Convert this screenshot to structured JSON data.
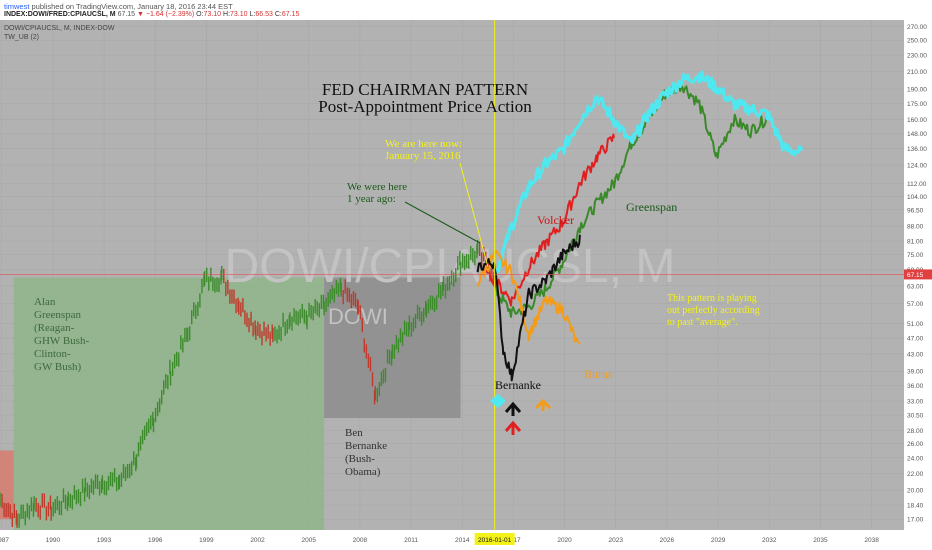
{
  "header": {
    "username": "timwest",
    "published": "published on TradingView.com, January 18, 2016 23:44 EST",
    "symbol": "INDEX:DOWI/FRED:CPIAUCSL, M",
    "last": "67.15",
    "change": "▼ −1.64 (−2.39%)",
    "o_label": "O:",
    "o": "73.10",
    "h_label": "H:",
    "h": "73.10",
    "l_label": "L:",
    "l": "66.53",
    "c_label": "C:",
    "c": "67.15"
  },
  "legend": {
    "series_line": "DOWI/CPIAUCSL, M, INDEX-DOW",
    "indicator_line": "TW_UB (2)"
  },
  "watermark": {
    "main": "DOWI/CPIAUCSL, M",
    "sub": "DOWI"
  },
  "price_axis": {
    "ticks": [
      "270.00",
      "250.00",
      "230.00",
      "210.00",
      "190.00",
      "175.00",
      "160.00",
      "148.00",
      "136.00",
      "124.00",
      "112.00",
      "104.00",
      "96.50",
      "88.00",
      "81.00",
      "75.00",
      "69.00",
      "63.00",
      "57.00",
      "51.00",
      "47.00",
      "43.00",
      "39.00",
      "36.00",
      "33.00",
      "30.50",
      "28.00",
      "26.00",
      "24.00",
      "22.00",
      "20.00",
      "18.40",
      "17.00"
    ],
    "current_price_label": "67.15"
  },
  "time_axis": {
    "ticks": [
      "1987",
      "1990",
      "1993",
      "1996",
      "1999",
      "2002",
      "2005",
      "2008",
      "2011",
      "2014",
      "2017",
      "2020",
      "2023",
      "2026",
      "2029",
      "2032",
      "2035",
      "2038"
    ],
    "highlight": "2016-01-01"
  },
  "annotations": {
    "title_line1": "FED CHAIRMAN PATTERN",
    "title_line2": "Post-Appointment Price Action",
    "here_now_line1": "We are here now:",
    "here_now_line2": "January 15, 2016",
    "year_ago_line1": "We were here",
    "year_ago_line2": "1 year ago:",
    "volcker": "Volcker",
    "greenspan": "Greenspan",
    "burns": "Burns",
    "bernanke": "Bernanke",
    "playing_line1": "This pattern is playing",
    "playing_line2": "out perfectly according",
    "playing_line3": "to past \"average\".",
    "greenspan_box": [
      "Alan",
      "Greenspan",
      "(Reagan-",
      "GHW Bush-",
      "Clinton-",
      "GW Bush)"
    ],
    "bernanke_box": [
      "Ben",
      "Bernanke",
      "(Bush-",
      "Obama)"
    ]
  },
  "colors": {
    "plot_bg": "#b2b2b2",
    "greenspan_zone": "#8fb48a",
    "bernanke_zone": "#8c8c8c",
    "up_bar": "#3c8c2c",
    "down_bar": "#c0392b",
    "cyan": "#4fe8f0",
    "red": "#e02020",
    "orange": "#f39c1a",
    "black": "#111111",
    "green": "#3a8a2a",
    "yellow": "#f2f21a"
  },
  "chart_data": {
    "type": "line",
    "title": "FED CHAIRMAN PATTERN",
    "subtitle": "Post-Appointment Price Action",
    "xlabel": "",
    "ylabel": "",
    "y_scale": "log",
    "ylim": [
      16,
      280
    ],
    "xlim": [
      1987,
      2040
    ],
    "grid": true,
    "series": [
      {
        "name": "",
        "style": "bars",
        "color": "up/down",
        "points": [
          [
            1987,
            19
          ],
          [
            1988,
            17
          ],
          [
            1989,
            18.5
          ],
          [
            1990,
            18
          ],
          [
            1991,
            19
          ],
          [
            1992,
            20
          ],
          [
            1993,
            21
          ],
          [
            1994,
            21
          ],
          [
            1995,
            24
          ],
          [
            1996,
            30
          ],
          [
            1997,
            39
          ],
          [
            1998,
            48
          ],
          [
            1999,
            65
          ],
          [
            2000,
            66
          ],
          [
            2001,
            57
          ],
          [
            2002,
            50
          ],
          [
            2003,
            47
          ],
          [
            2004,
            53
          ],
          [
            2005,
            53
          ],
          [
            2006,
            56
          ],
          [
            2007,
            62
          ],
          [
            2008,
            56
          ],
          [
            2009,
            34
          ],
          [
            2010,
            44
          ],
          [
            2011,
            50
          ],
          [
            2012,
            56
          ],
          [
            2013,
            62
          ],
          [
            2014,
            72
          ],
          [
            2015,
            76
          ],
          [
            2016,
            67.15
          ]
        ]
      },
      {
        "name": "Greenspan",
        "color": "green",
        "points": [
          [
            2016,
            62
          ],
          [
            2017,
            54
          ],
          [
            2018,
            56
          ],
          [
            2019,
            62
          ],
          [
            2020,
            72
          ],
          [
            2021,
            88
          ],
          [
            2022,
            100
          ],
          [
            2023,
            112
          ],
          [
            2024,
            140
          ],
          [
            2025,
            160
          ],
          [
            2026,
            185
          ],
          [
            2027,
            195
          ],
          [
            2028,
            175
          ],
          [
            2029,
            130
          ],
          [
            2030,
            160
          ],
          [
            2031,
            150
          ],
          [
            2032,
            162
          ]
        ]
      },
      {
        "name": "",
        "color": "cyan",
        "points": [
          [
            2016,
            66
          ],
          [
            2017,
            88
          ],
          [
            2018,
            110
          ],
          [
            2019,
            125
          ],
          [
            2020,
            135
          ],
          [
            2021,
            160
          ],
          [
            2022,
            182
          ],
          [
            2023,
            160
          ],
          [
            2024,
            140
          ],
          [
            2025,
            165
          ],
          [
            2026,
            185
          ],
          [
            2027,
            200
          ],
          [
            2028,
            205
          ],
          [
            2029,
            192
          ],
          [
            2030,
            175
          ],
          [
            2031,
            170
          ],
          [
            2032,
            165
          ],
          [
            2033,
            136
          ],
          [
            2034,
            133
          ]
        ]
      },
      {
        "name": "Volcker",
        "color": "red",
        "points": [
          [
            2015.5,
            70
          ],
          [
            2016,
            65
          ],
          [
            2017,
            58
          ],
          [
            2018,
            70
          ],
          [
            2019,
            80
          ],
          [
            2020,
            90
          ],
          [
            2021,
            112
          ],
          [
            2022,
            130
          ],
          [
            2023,
            145
          ]
        ]
      },
      {
        "name": "Burns",
        "color": "orange",
        "points": [
          [
            2015,
            64
          ],
          [
            2016,
            75
          ],
          [
            2017,
            68
          ],
          [
            2018,
            48
          ],
          [
            2019,
            58
          ],
          [
            2020,
            55
          ],
          [
            2021,
            44
          ]
        ]
      },
      {
        "name": "Bernanke",
        "color": "black",
        "points": [
          [
            2015,
            70
          ],
          [
            2016,
            72
          ],
          [
            2016.5,
            44
          ],
          [
            2017,
            38
          ],
          [
            2018,
            60
          ],
          [
            2019,
            65
          ],
          [
            2020,
            75
          ],
          [
            2021,
            82
          ]
        ]
      }
    ]
  }
}
